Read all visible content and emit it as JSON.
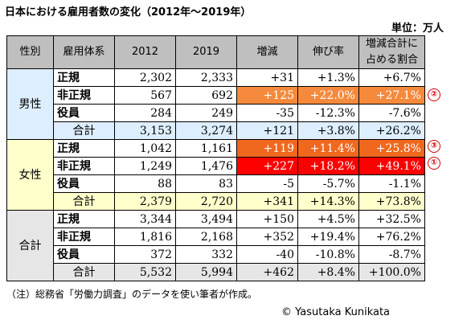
{
  "title": "日本における雇用者数の変化（2012年～2019年）",
  "unit": "単位：万人",
  "headers": [
    "性別",
    "雇用体系",
    "2012",
    "2019",
    "増減",
    "伸び率",
    "増減合計に占める割合"
  ],
  "groups": [
    {
      "name": "男性",
      "rows": [
        {
          "type": "正規",
          "y2012": "2,302",
          "y2019": "2,333",
          "diff": "+31",
          "growth": "+1.3%",
          "share": "+6.7%"
        },
        {
          "type": "非正規",
          "y2012": "567",
          "y2019": "692",
          "diff": "+125",
          "growth": "+22.0%",
          "share": "+27.1%"
        },
        {
          "type": "役員",
          "y2012": "284",
          "y2019": "249",
          "diff": "-35",
          "growth": "-12.3%",
          "share": "-7.6%"
        }
      ],
      "total": {
        "label": "合計",
        "y2012": "3,153",
        "y2019": "3,274",
        "diff": "+121",
        "growth": "+3.8%",
        "share": "+26.2%"
      }
    },
    {
      "name": "女性",
      "rows": [
        {
          "type": "正規",
          "y2012": "1,042",
          "y2019": "1,161",
          "diff": "+119",
          "growth": "+11.4%",
          "share": "+25.8%"
        },
        {
          "type": "非正規",
          "y2012": "1,249",
          "y2019": "1,476",
          "diff": "+227",
          "growth": "+18.2%",
          "share": "+49.1%"
        },
        {
          "type": "役員",
          "y2012": "88",
          "y2019": "83",
          "diff": "-5",
          "growth": "-5.7%",
          "share": "-1.1%"
        }
      ],
      "total": {
        "label": "合計",
        "y2012": "2,379",
        "y2019": "2,720",
        "diff": "+341",
        "growth": "+14.3%",
        "share": "+73.8%"
      }
    },
    {
      "name": "合計",
      "rows": [
        {
          "type": "正規",
          "y2012": "3,344",
          "y2019": "3,494",
          "diff": "+150",
          "growth": "+4.5%",
          "share": "+32.5%"
        },
        {
          "type": "非正規",
          "y2012": "1,816",
          "y2019": "2,168",
          "diff": "+352",
          "growth": "+19.4%",
          "share": "+76.2%"
        },
        {
          "type": "役員",
          "y2012": "372",
          "y2019": "332",
          "diff": "-40",
          "growth": "-10.8%",
          "share": "-8.7%"
        }
      ],
      "total": {
        "label": "合計",
        "y2012": "5,532",
        "y2019": "5,994",
        "diff": "+462",
        "growth": "+8.4%",
        "share": "+100.0%"
      }
    }
  ],
  "markers": [
    "②",
    "③",
    "①"
  ],
  "highlight_colors": {
    "orange": "#f58a3c",
    "dark_orange": "#f0681e",
    "red": "#ff0000",
    "marker": "#d10000"
  },
  "note": "（注）総務省「労働力調査」のデータを使い筆者が作成。",
  "copyright": "© Yasutaka Kunikata"
}
